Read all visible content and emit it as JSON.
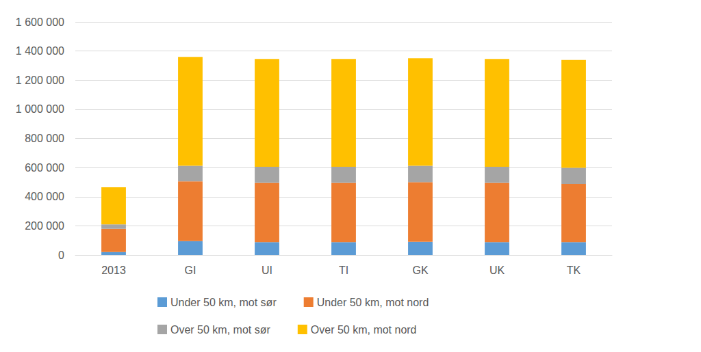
{
  "chart_data": {
    "type": "bar",
    "stacked": true,
    "categories": [
      "2013",
      "GI",
      "UI",
      "TI",
      "GK",
      "UK",
      "TK"
    ],
    "series": [
      {
        "name": "Under 50 km, mot sør",
        "color": "#5b9bd5",
        "values": [
          20000,
          95000,
          88000,
          88000,
          90000,
          88000,
          88000
        ]
      },
      {
        "name": "Under 50 km, mot nord",
        "color": "#ed7d31",
        "values": [
          160000,
          410000,
          407000,
          407000,
          410000,
          407000,
          400000
        ]
      },
      {
        "name": "Over 50 km, mot sør",
        "color": "#a5a5a5",
        "values": [
          30000,
          107000,
          110000,
          110000,
          112000,
          110000,
          110000
        ]
      },
      {
        "name": "Over 50 km, mot nord",
        "color": "#ffc000",
        "values": [
          255000,
          748000,
          740000,
          740000,
          738000,
          740000,
          740000
        ]
      }
    ],
    "ylim": [
      0,
      1600000
    ],
    "yticks": [
      0,
      {
        "value": 200000,
        "label": "200 000"
      },
      {
        "value": 400000,
        "label": "400 000"
      },
      {
        "value": 600000,
        "label": "600 000"
      },
      {
        "value": 800000,
        "label": "800 000"
      },
      {
        "value": 1000000,
        "label": "1 000 000"
      },
      {
        "value": 1200000,
        "label": "1 200 000"
      },
      {
        "value": 1400000,
        "label": "1 400 000"
      },
      {
        "value": 1600000,
        "label": "1 600 000"
      }
    ],
    "grid": true,
    "legend": "bottom"
  }
}
